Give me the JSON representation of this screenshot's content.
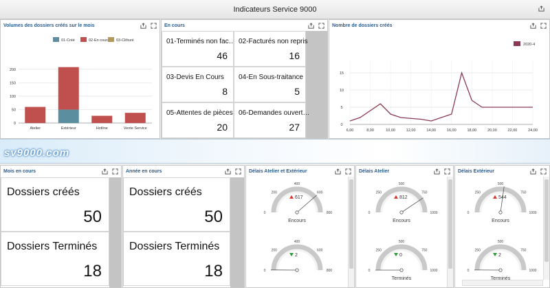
{
  "header": {
    "title": "Indicateurs Service 9000"
  },
  "banner": {
    "logo": "sv9000.com"
  },
  "volumes": {
    "title": "Volumes des dossiers créés sur le mois",
    "chart_data": {
      "type": "bar",
      "stacked": true,
      "categories": [
        "Atelier",
        "Extérieur",
        "Hotline",
        "Vente Service"
      ],
      "series": [
        {
          "name": "01-Créé",
          "values": [
            0,
            50,
            0,
            0
          ],
          "color": "#5b8fa0"
        },
        {
          "name": "02-En cours",
          "values": [
            60,
            158,
            27,
            38
          ],
          "color": "#c0504d"
        },
        {
          "name": "03-Clôturé",
          "values": [
            0,
            0,
            0,
            0
          ],
          "color": "#b49a5a"
        }
      ],
      "yticks": [
        "0",
        "50",
        "100",
        "150",
        "200"
      ],
      "ylim": [
        0,
        225
      ],
      "legend": "top",
      "grid": true
    }
  },
  "encours": {
    "title": "En cours",
    "tiles": [
      {
        "label": "01-Terminés non fac…",
        "value": "46"
      },
      {
        "label": "02-Facturés non repris",
        "value": "16"
      },
      {
        "label": "03-Devis En Cours",
        "value": "8"
      },
      {
        "label": "04-En Sous-traitance",
        "value": "5"
      },
      {
        "label": "05-Attentes de pièces",
        "value": "20"
      },
      {
        "label": "06-Demandes ouvert…",
        "value": "27"
      }
    ]
  },
  "nombre": {
    "title": "Nombre de dossiers créés",
    "chart_data": {
      "type": "line",
      "series": [
        {
          "name": "2020-4",
          "color": "#8a3a50",
          "x": [
            6,
            7,
            9,
            10,
            11,
            13,
            14,
            16,
            17,
            18,
            19,
            22,
            24
          ],
          "y": [
            1,
            2,
            6,
            3,
            2,
            1.5,
            1,
            3,
            15,
            7,
            5,
            5,
            5
          ]
        }
      ],
      "xticks": [
        "6,00",
        "8,00",
        "10,00",
        "12,00",
        "14,00",
        "16,00",
        "18,00",
        "20,00",
        "22,00",
        "24,00"
      ],
      "yticks": [
        "0",
        "5",
        "10",
        "15"
      ],
      "xlim": [
        6,
        24
      ],
      "ylim": [
        0,
        17
      ],
      "legend": "top-right",
      "grid": true
    }
  },
  "mois": {
    "title": "Mois en cours",
    "tiles": [
      {
        "label": "Dossiers créés",
        "value": "50"
      },
      {
        "label": "Dossiers Terminés",
        "value": "18"
      }
    ]
  },
  "annee": {
    "title": "Année en cours",
    "tiles": [
      {
        "label": "Dossiers créés",
        "value": "50"
      },
      {
        "label": "Dossiers Terminés",
        "value": "18"
      }
    ]
  },
  "delais_ae": {
    "title": "Délais Atelier et Extérieur",
    "gauges": [
      {
        "label": "Encours",
        "value": "617",
        "num": 617,
        "trend": "up",
        "max": 800,
        "ticks": [
          "0",
          "200",
          "400",
          "600",
          "800"
        ]
      },
      {
        "label": "",
        "value": "2",
        "num": 2,
        "trend": "down",
        "max": 800,
        "ticks": [
          "0",
          "200",
          "400",
          "600",
          "800"
        ]
      }
    ]
  },
  "delais_a": {
    "title": "Délais Atelier",
    "gauges": [
      {
        "label": "Encours",
        "value": "812",
        "num": 812,
        "trend": "up",
        "max": 1000,
        "ticks": [
          "0",
          "250",
          "500",
          "750",
          "1000"
        ]
      },
      {
        "label": "Terminés",
        "value": "0",
        "num": 0,
        "trend": "down",
        "max": 1000,
        "ticks": [
          "0",
          "250",
          "500",
          "750",
          "1000"
        ]
      }
    ]
  },
  "delais_e": {
    "title": "Délais Extérieur",
    "gauges": [
      {
        "label": "Encours",
        "value": "544",
        "num": 544,
        "trend": "up",
        "max": 1000,
        "ticks": [
          "0",
          "250",
          "500",
          "750",
          "1000"
        ]
      },
      {
        "label": "Terminés",
        "value": "2",
        "num": 2,
        "trend": "down",
        "max": 1000,
        "ticks": [
          "0",
          "250",
          "500",
          "750",
          "1000"
        ]
      }
    ]
  },
  "icons": {
    "export": "export-icon",
    "maximize": "maximize-icon"
  }
}
